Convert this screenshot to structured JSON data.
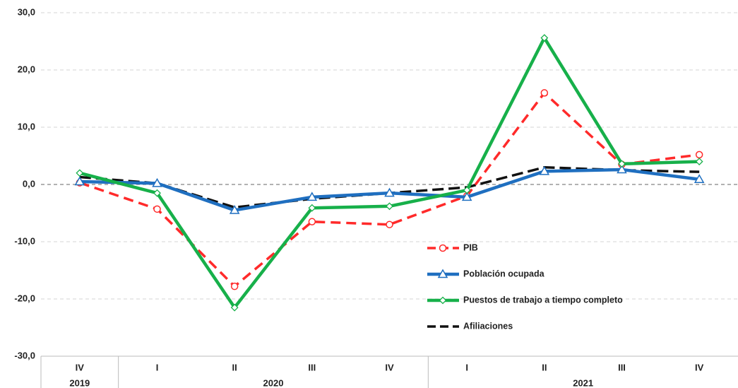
{
  "chart_data": {
    "type": "line",
    "categories": [
      "IV",
      "I",
      "II",
      "III",
      "IV",
      "I",
      "II",
      "III",
      "IV"
    ],
    "groups": [
      "2019",
      "2020",
      null,
      null,
      null,
      "2021",
      null,
      null,
      null
    ],
    "series": [
      {
        "name": "PIB",
        "color": "#ff2a2a",
        "dash": true,
        "marker": "circle",
        "values": [
          0.3,
          -4.3,
          -17.8,
          -6.5,
          -7.0,
          -2.0,
          16.0,
          3.5,
          5.2
        ]
      },
      {
        "name": "Población ocupada",
        "color": "#1f6fc0",
        "dash": false,
        "marker": "triangle",
        "values": [
          0.5,
          0.2,
          -4.5,
          -2.2,
          -1.5,
          -2.2,
          2.3,
          2.6,
          0.9
        ]
      },
      {
        "name": "Puestos de trabajo a tiempo completo",
        "color": "#17b04a",
        "dash": false,
        "marker": "diamond",
        "values": [
          2.0,
          -1.5,
          -21.5,
          -4.1,
          -3.8,
          -1.0,
          25.6,
          3.6,
          4.0
        ]
      },
      {
        "name": "Afiliaciones",
        "color": "#111111",
        "dash": true,
        "marker": null,
        "values": [
          1.3,
          0.2,
          -4.0,
          -2.5,
          -1.5,
          -0.5,
          3.0,
          2.5,
          2.2
        ]
      }
    ],
    "ylim": [
      -30,
      30
    ],
    "yticks": [
      {
        "value": -30,
        "label": "-30,0"
      },
      {
        "value": -20,
        "label": "-20,0"
      },
      {
        "value": -10,
        "label": "-10,0"
      },
      {
        "value": 0,
        "label": "0,0"
      },
      {
        "value": 10,
        "label": "10,0"
      },
      {
        "value": 20,
        "label": "20,0"
      },
      {
        "value": 30,
        "label": "30,0"
      }
    ],
    "grid": true
  }
}
